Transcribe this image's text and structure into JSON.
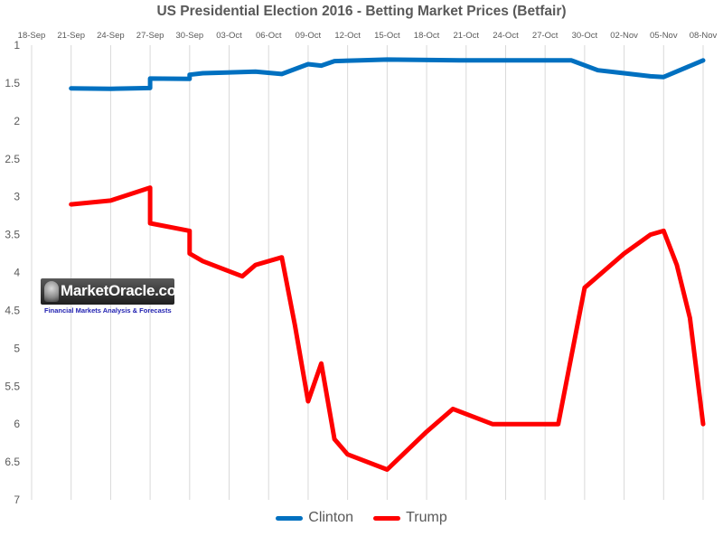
{
  "chart_data": {
    "type": "line",
    "title": "US Presidential Election 2016 - Betting Market Prices (Betfair)",
    "xlabel": "",
    "ylabel": "",
    "x_ticks": [
      "18-Sep",
      "21-Sep",
      "24-Sep",
      "27-Sep",
      "30-Sep",
      "03-Oct",
      "06-Oct",
      "09-Oct",
      "12-Oct",
      "15-Oct",
      "18-Oct",
      "21-Oct",
      "24-Oct",
      "27-Oct",
      "30-Oct",
      "02-Nov",
      "05-Nov",
      "08-Nov"
    ],
    "xlim": [
      "18-Sep",
      "08-Nov"
    ],
    "ylim": [
      1,
      7
    ],
    "y_inverted": true,
    "y_ticks": [
      "1",
      "1.5",
      "2",
      "2.5",
      "3",
      "3.5",
      "4",
      "4.5",
      "5",
      "5.5",
      "6",
      "6.5",
      "7"
    ],
    "grid": {
      "vertical": true,
      "horizontal": false
    },
    "legend_position": "bottom",
    "series": [
      {
        "name": "Clinton",
        "color": "#0070c0",
        "points": [
          [
            "2016-09-21",
            1.57
          ],
          [
            "2016-09-24",
            1.575
          ],
          [
            "2016-09-27",
            1.565
          ],
          [
            "2016-09-27",
            1.44
          ],
          [
            "2016-09-30",
            1.445
          ],
          [
            "2016-09-30",
            1.39
          ],
          [
            "2016-10-01",
            1.37
          ],
          [
            "2016-10-05",
            1.35
          ],
          [
            "2016-10-07",
            1.38
          ],
          [
            "2016-10-09",
            1.25
          ],
          [
            "2016-10-10",
            1.27
          ],
          [
            "2016-10-11",
            1.21
          ],
          [
            "2016-10-13",
            1.2
          ],
          [
            "2016-10-15",
            1.19
          ],
          [
            "2016-10-21",
            1.2
          ],
          [
            "2016-10-24",
            1.2
          ],
          [
            "2016-10-29",
            1.2
          ],
          [
            "2016-10-31",
            1.33
          ],
          [
            "2016-11-02",
            1.37
          ],
          [
            "2016-11-04",
            1.41
          ],
          [
            "2016-11-05",
            1.42
          ],
          [
            "2016-11-08",
            1.2
          ]
        ]
      },
      {
        "name": "Trump",
        "color": "#ff0000",
        "points": [
          [
            "2016-09-21",
            3.1
          ],
          [
            "2016-09-24",
            3.05
          ],
          [
            "2016-09-27",
            2.88
          ],
          [
            "2016-09-27",
            3.35
          ],
          [
            "2016-09-30",
            3.45
          ],
          [
            "2016-09-30",
            3.75
          ],
          [
            "2016-10-01",
            3.85
          ],
          [
            "2016-10-04",
            4.05
          ],
          [
            "2016-10-05",
            3.9
          ],
          [
            "2016-10-07",
            3.8
          ],
          [
            "2016-10-08",
            4.7
          ],
          [
            "2016-10-09",
            5.7
          ],
          [
            "2016-10-10",
            5.2
          ],
          [
            "2016-10-11",
            6.2
          ],
          [
            "2016-10-12",
            6.4
          ],
          [
            "2016-10-15",
            6.6
          ],
          [
            "2016-10-18",
            6.1
          ],
          [
            "2016-10-20",
            5.8
          ],
          [
            "2016-10-23",
            6.0
          ],
          [
            "2016-10-28",
            6.0
          ],
          [
            "2016-10-30",
            4.2
          ],
          [
            "2016-11-02",
            3.75
          ],
          [
            "2016-11-04",
            3.5
          ],
          [
            "2016-11-05",
            3.45
          ],
          [
            "2016-11-06",
            3.9
          ],
          [
            "2016-11-07",
            4.6
          ],
          [
            "2016-11-08",
            6.0
          ]
        ]
      }
    ]
  },
  "logo": {
    "text": "MarketOracle.co.uk",
    "tagline": "Financial Markets Analysis & Forecasts"
  }
}
